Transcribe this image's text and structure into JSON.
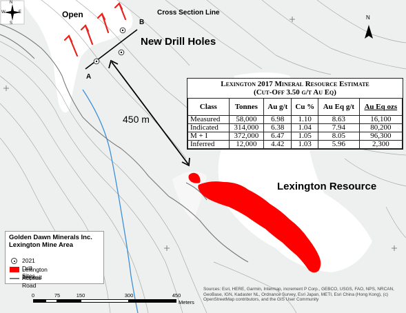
{
  "map": {
    "open_label": "Open",
    "cross_section_label": "Cross Section Line",
    "new_drill_holes_label": "New Drill Holes",
    "point_a": "A",
    "point_b": "B",
    "distance_label": "450 m",
    "lexington_resource_label": "Lexington Resource",
    "north_arrow_letter": "N",
    "compass": {
      "n": "N",
      "s": "S",
      "w": "W",
      "e": "E"
    },
    "colors": {
      "deposit": "#ff0000",
      "arrows": "#e8241f",
      "stream": "#3b8fd8",
      "road": "#777777",
      "contour": "#a8aaa8"
    }
  },
  "resource_table": {
    "title": "Lexington 2017 Mineral Resource Estimate",
    "subtitle": "(Cut-Off 3.50 g/t Au Eq)",
    "headers": [
      "Class",
      "Tonnes",
      "Au g/t",
      "Cu %",
      "Au Eq g/t",
      "Au Eq ozs"
    ],
    "rows": [
      [
        "Measured",
        "58,000",
        "6.98",
        "1.10",
        "8.63",
        "16,100"
      ],
      [
        "Indicated",
        "314,000",
        "6.38",
        "1.04",
        "7.94",
        "80,200"
      ],
      [
        "M + I",
        "372,000",
        "6.47",
        "1.05",
        "8.05",
        "96,300"
      ],
      [
        "Inferred",
        "12,000",
        "4.42",
        "1.03",
        "5.96",
        "2,300"
      ]
    ]
  },
  "legend": {
    "title_line1": "Golden Dawn Minerals Inc.",
    "title_line2": "Lexington Mine Area",
    "items": [
      {
        "label": "2021 Drill Sites",
        "symbol": "drill-site-icon"
      },
      {
        "label": "Lexington Deposit",
        "symbol": "deposit-swatch"
      },
      {
        "label": "Access Road",
        "symbol": "road-line"
      }
    ]
  },
  "scale_bar": {
    "ticks": [
      "0",
      "75",
      "150",
      "300",
      "450"
    ],
    "units": "Meters"
  },
  "credits": "Sources: Esri, HERE, Garmin, Intermap, increment P Corp., GEBCO, USGS, FAO, NPS, NRCAN, GeoBase, IGN, Kadaster NL, Ordnance Survey, Esri Japan, METI, Esri China (Hong Kong), (c) OpenStreetMap contributors, and the GIS User Community"
}
